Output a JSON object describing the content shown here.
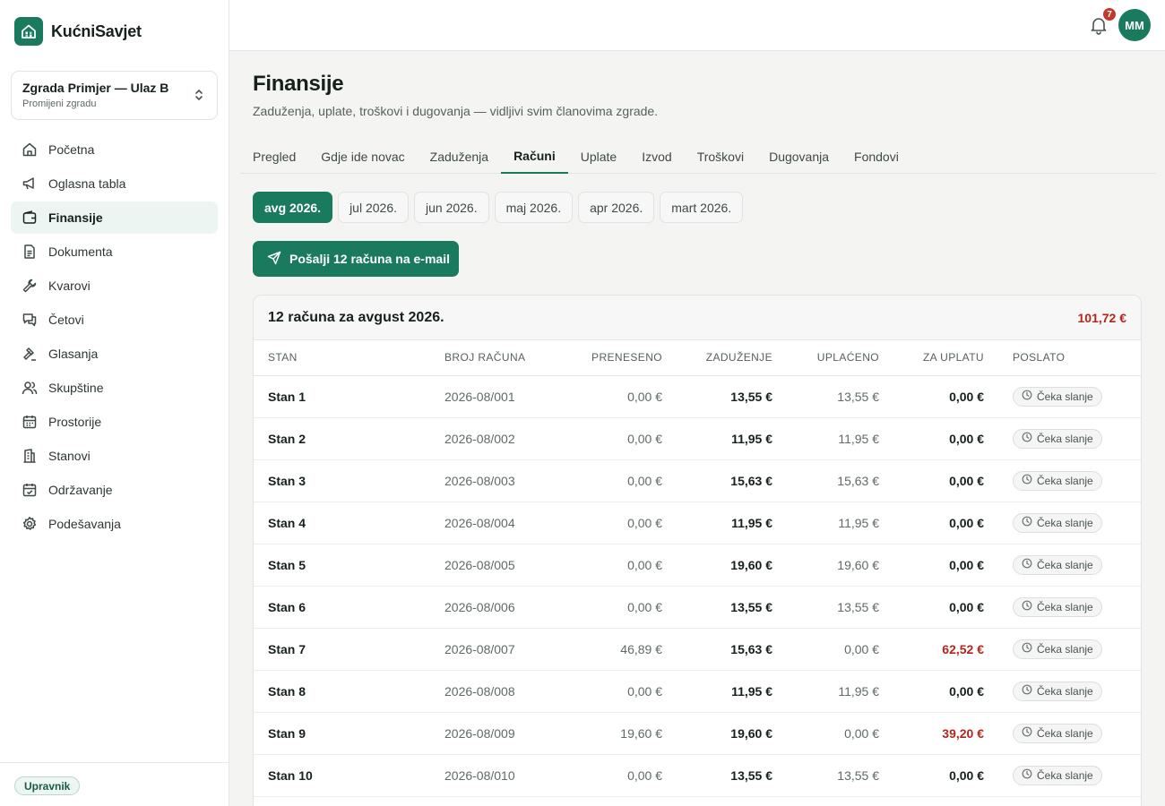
{
  "app": {
    "name": "KućniSavjet"
  },
  "building": {
    "name": "Zgrada Primjer — Ulaz B",
    "sub": "Promijeni zgradu"
  },
  "nav": [
    {
      "label": "Početna",
      "icon": "home-icon",
      "active": false
    },
    {
      "label": "Oglasna tabla",
      "icon": "megaphone-icon",
      "active": false
    },
    {
      "label": "Finansije",
      "icon": "wallet-icon",
      "active": true
    },
    {
      "label": "Dokumenta",
      "icon": "document-icon",
      "active": false
    },
    {
      "label": "Kvarovi",
      "icon": "wrench-icon",
      "active": false
    },
    {
      "label": "Četovi",
      "icon": "chat-icon",
      "active": false
    },
    {
      "label": "Glasanja",
      "icon": "gavel-icon",
      "active": false
    },
    {
      "label": "Skupštine",
      "icon": "users-icon",
      "active": false
    },
    {
      "label": "Prostorije",
      "icon": "calendar-icon",
      "active": false
    },
    {
      "label": "Stanovi",
      "icon": "building-icon",
      "active": false
    },
    {
      "label": "Održavanje",
      "icon": "calendar-check-icon",
      "active": false
    },
    {
      "label": "Podešavanja",
      "icon": "gear-icon",
      "active": false
    }
  ],
  "role": "Upravnik",
  "topbar": {
    "notifications": "7",
    "avatar": "MM"
  },
  "page": {
    "title": "Finansije",
    "subtitle": "Zaduženja, uplate, troškovi i dugovanja — vidljivi svim članovima zgrade."
  },
  "tabs": [
    {
      "label": "Pregled",
      "active": false
    },
    {
      "label": "Gdje ide novac",
      "active": false
    },
    {
      "label": "Zaduženja",
      "active": false
    },
    {
      "label": "Računi",
      "active": true
    },
    {
      "label": "Uplate",
      "active": false
    },
    {
      "label": "Izvod",
      "active": false
    },
    {
      "label": "Troškovi",
      "active": false
    },
    {
      "label": "Dugovanja",
      "active": false
    },
    {
      "label": "Fondovi",
      "active": false
    }
  ],
  "months": [
    {
      "label": "avg 2026.",
      "active": true
    },
    {
      "label": "jul 2026.",
      "active": false
    },
    {
      "label": "jun 2026.",
      "active": false
    },
    {
      "label": "maj 2026.",
      "active": false
    },
    {
      "label": "apr 2026.",
      "active": false
    },
    {
      "label": "mart 2026.",
      "active": false
    }
  ],
  "send_button": "Pošalji 12 računa na e-mail",
  "card": {
    "title": "12 računa za avgust 2026.",
    "total": "101,72 €",
    "columns": [
      "STAN",
      "BROJ RAČUNA",
      "PRENESENO",
      "ZADUŽENJE",
      "UPLAĆENO",
      "ZA UPLATU",
      "POSLATO"
    ],
    "rows": [
      {
        "stan": "Stan 1",
        "broj": "2026-08/001",
        "preneseno": "0,00 €",
        "zaduzenje": "13,55 €",
        "uplaceno": "13,55 €",
        "za_uplatu": "0,00 €",
        "debt": false,
        "status": "Čeka slanje"
      },
      {
        "stan": "Stan 2",
        "broj": "2026-08/002",
        "preneseno": "0,00 €",
        "zaduzenje": "11,95 €",
        "uplaceno": "11,95 €",
        "za_uplatu": "0,00 €",
        "debt": false,
        "status": "Čeka slanje"
      },
      {
        "stan": "Stan 3",
        "broj": "2026-08/003",
        "preneseno": "0,00 €",
        "zaduzenje": "15,63 €",
        "uplaceno": "15,63 €",
        "za_uplatu": "0,00 €",
        "debt": false,
        "status": "Čeka slanje"
      },
      {
        "stan": "Stan 4",
        "broj": "2026-08/004",
        "preneseno": "0,00 €",
        "zaduzenje": "11,95 €",
        "uplaceno": "11,95 €",
        "za_uplatu": "0,00 €",
        "debt": false,
        "status": "Čeka slanje"
      },
      {
        "stan": "Stan 5",
        "broj": "2026-08/005",
        "preneseno": "0,00 €",
        "zaduzenje": "19,60 €",
        "uplaceno": "19,60 €",
        "za_uplatu": "0,00 €",
        "debt": false,
        "status": "Čeka slanje"
      },
      {
        "stan": "Stan 6",
        "broj": "2026-08/006",
        "preneseno": "0,00 €",
        "zaduzenje": "13,55 €",
        "uplaceno": "13,55 €",
        "za_uplatu": "0,00 €",
        "debt": false,
        "status": "Čeka slanje"
      },
      {
        "stan": "Stan 7",
        "broj": "2026-08/007",
        "preneseno": "46,89 €",
        "zaduzenje": "15,63 €",
        "uplaceno": "0,00 €",
        "za_uplatu": "62,52 €",
        "debt": true,
        "status": "Čeka slanje"
      },
      {
        "stan": "Stan 8",
        "broj": "2026-08/008",
        "preneseno": "0,00 €",
        "zaduzenje": "11,95 €",
        "uplaceno": "11,95 €",
        "za_uplatu": "0,00 €",
        "debt": false,
        "status": "Čeka slanje"
      },
      {
        "stan": "Stan 9",
        "broj": "2026-08/009",
        "preneseno": "19,60 €",
        "zaduzenje": "19,60 €",
        "uplaceno": "0,00 €",
        "za_uplatu": "39,20 €",
        "debt": true,
        "status": "Čeka slanje"
      },
      {
        "stan": "Stan 10",
        "broj": "2026-08/010",
        "preneseno": "0,00 €",
        "zaduzenje": "13,55 €",
        "uplaceno": "13,55 €",
        "za_uplatu": "0,00 €",
        "debt": false,
        "status": "Čeka slanje"
      }
    ]
  },
  "colors": {
    "accent": "#1a7a5e",
    "debt": "#b3261e",
    "badge": "#c0392b"
  }
}
